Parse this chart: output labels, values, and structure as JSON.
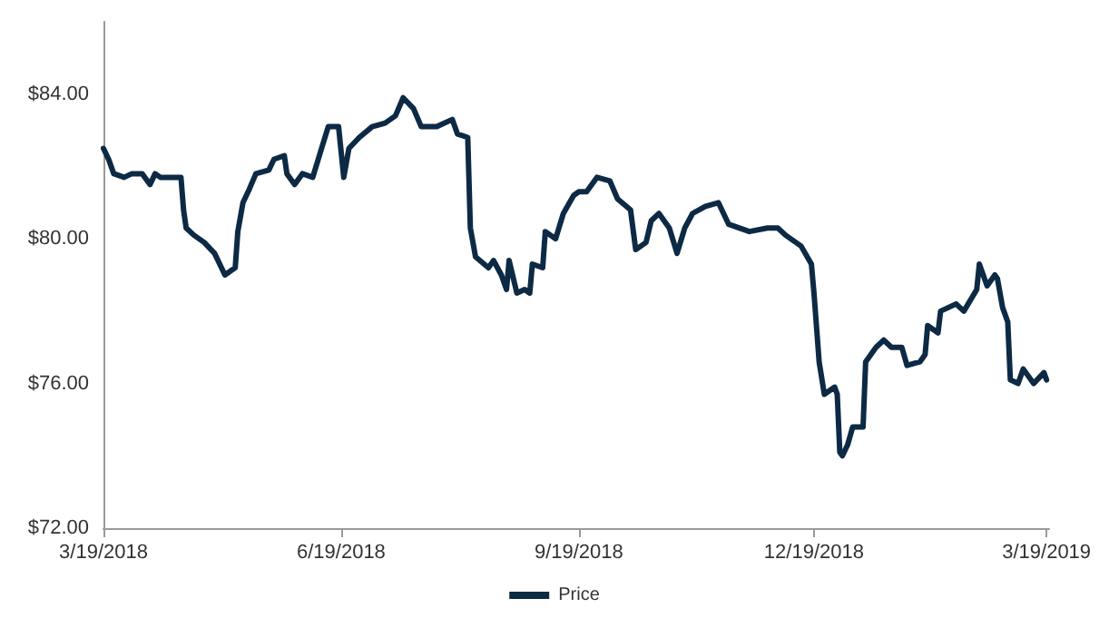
{
  "chart_data": {
    "type": "line",
    "legend": "bottom",
    "marker": "none",
    "line_style": "solid",
    "grid": false,
    "xlim": [
      "2018-03-19",
      "2019-03-20"
    ],
    "xticks": [
      {
        "value": "2018-03-19",
        "label": "3/19/2018"
      },
      {
        "value": "2018-06-19",
        "label": "6/19/2018"
      },
      {
        "value": "2018-09-19",
        "label": "9/19/2018"
      },
      {
        "value": "2018-12-19",
        "label": "12/19/2018"
      },
      {
        "value": "2019-03-19",
        "label": "3/19/2019"
      }
    ],
    "ylim": [
      72,
      86
    ],
    "yticks": [
      {
        "value": 72,
        "label": "$72.00"
      },
      {
        "value": 76,
        "label": "$76.00"
      },
      {
        "value": 80,
        "label": "$80.00"
      },
      {
        "value": 84,
        "label": "$84.00"
      }
    ],
    "x": [
      "2018-03-19",
      "2018-03-21",
      "2018-03-23",
      "2018-03-27",
      "2018-03-30",
      "2018-04-03",
      "2018-04-06",
      "2018-04-08",
      "2018-04-10",
      "2018-04-13",
      "2018-04-18",
      "2018-04-19",
      "2018-04-20",
      "2018-04-23",
      "2018-04-27",
      "2018-05-01",
      "2018-05-03",
      "2018-05-05",
      "2018-05-09",
      "2018-05-10",
      "2018-05-12",
      "2018-05-14",
      "2018-05-17",
      "2018-05-22",
      "2018-05-24",
      "2018-05-28",
      "2018-05-29",
      "2018-06-01",
      "2018-06-04",
      "2018-06-08",
      "2018-06-11",
      "2018-06-14",
      "2018-06-18",
      "2018-06-20",
      "2018-06-22",
      "2018-06-26",
      "2018-07-01",
      "2018-07-06",
      "2018-07-10",
      "2018-07-13",
      "2018-07-17",
      "2018-07-20",
      "2018-07-26",
      "2018-08-01",
      "2018-08-03",
      "2018-08-07",
      "2018-08-08",
      "2018-08-10",
      "2018-08-15",
      "2018-08-17",
      "2018-08-20",
      "2018-08-22",
      "2018-08-23",
      "2018-08-26",
      "2018-08-29",
      "2018-08-31",
      "2018-09-01",
      "2018-09-05",
      "2018-09-06",
      "2018-09-10",
      "2018-09-13",
      "2018-09-17",
      "2018-09-19",
      "2018-09-22",
      "2018-09-26",
      "2018-10-01",
      "2018-10-04",
      "2018-10-09",
      "2018-10-11",
      "2018-10-15",
      "2018-10-17",
      "2018-10-20",
      "2018-10-24",
      "2018-10-27",
      "2018-10-30",
      "2018-11-02",
      "2018-11-07",
      "2018-11-12",
      "2018-11-16",
      "2018-11-20",
      "2018-11-24",
      "2018-12-01",
      "2018-12-05",
      "2018-12-08",
      "2018-12-14",
      "2018-12-18",
      "2018-12-19",
      "2018-12-21",
      "2018-12-23",
      "2018-12-27",
      "2018-12-28",
      "2018-12-29",
      "2018-12-30",
      "2019-01-01",
      "2019-01-03",
      "2019-01-07",
      "2019-01-08",
      "2019-01-12",
      "2019-01-15",
      "2019-01-18",
      "2019-01-22",
      "2019-01-24",
      "2019-01-29",
      "2019-01-31",
      "2019-02-01",
      "2019-02-05",
      "2019-02-06",
      "2019-02-12",
      "2019-02-15",
      "2019-02-20",
      "2019-02-21",
      "2019-02-22",
      "2019-02-24",
      "2019-02-27",
      "2019-02-28",
      "2019-03-02",
      "2019-03-04",
      "2019-03-05",
      "2019-03-08",
      "2019-03-10",
      "2019-03-14",
      "2019-03-18",
      "2019-03-19"
    ],
    "series": [
      {
        "name": "Price",
        "color": "#0d2a45",
        "values": [
          82.5,
          82.2,
          81.8,
          81.7,
          81.8,
          81.8,
          81.5,
          81.8,
          81.7,
          81.7,
          81.7,
          80.8,
          80.3,
          80.1,
          79.9,
          79.6,
          79.3,
          79.0,
          79.2,
          80.2,
          81.0,
          81.3,
          81.8,
          81.9,
          82.2,
          82.3,
          81.8,
          81.5,
          81.8,
          81.7,
          82.4,
          83.1,
          83.1,
          81.7,
          82.5,
          82.8,
          83.1,
          83.2,
          83.4,
          83.9,
          83.6,
          83.1,
          83.1,
          83.3,
          82.9,
          82.8,
          80.3,
          79.5,
          79.2,
          79.4,
          79.0,
          78.6,
          79.4,
          78.5,
          78.6,
          78.5,
          79.3,
          79.2,
          80.2,
          80.0,
          80.7,
          81.2,
          81.3,
          81.3,
          81.7,
          81.6,
          81.1,
          80.8,
          79.7,
          79.9,
          80.5,
          80.7,
          80.3,
          79.6,
          80.3,
          80.7,
          80.9,
          81.0,
          80.4,
          80.3,
          80.2,
          80.3,
          80.3,
          80.1,
          79.8,
          79.3,
          78.5,
          76.6,
          75.7,
          75.9,
          75.7,
          74.1,
          74.0,
          74.3,
          74.8,
          74.8,
          76.6,
          77.0,
          77.2,
          77.0,
          77.0,
          76.5,
          76.6,
          76.8,
          77.6,
          77.4,
          78.0,
          78.2,
          78.0,
          78.6,
          79.3,
          79.1,
          78.7,
          79.0,
          78.9,
          78.1,
          77.7,
          76.1,
          76.0,
          76.4,
          76.0,
          76.3,
          76.1
        ]
      }
    ]
  }
}
